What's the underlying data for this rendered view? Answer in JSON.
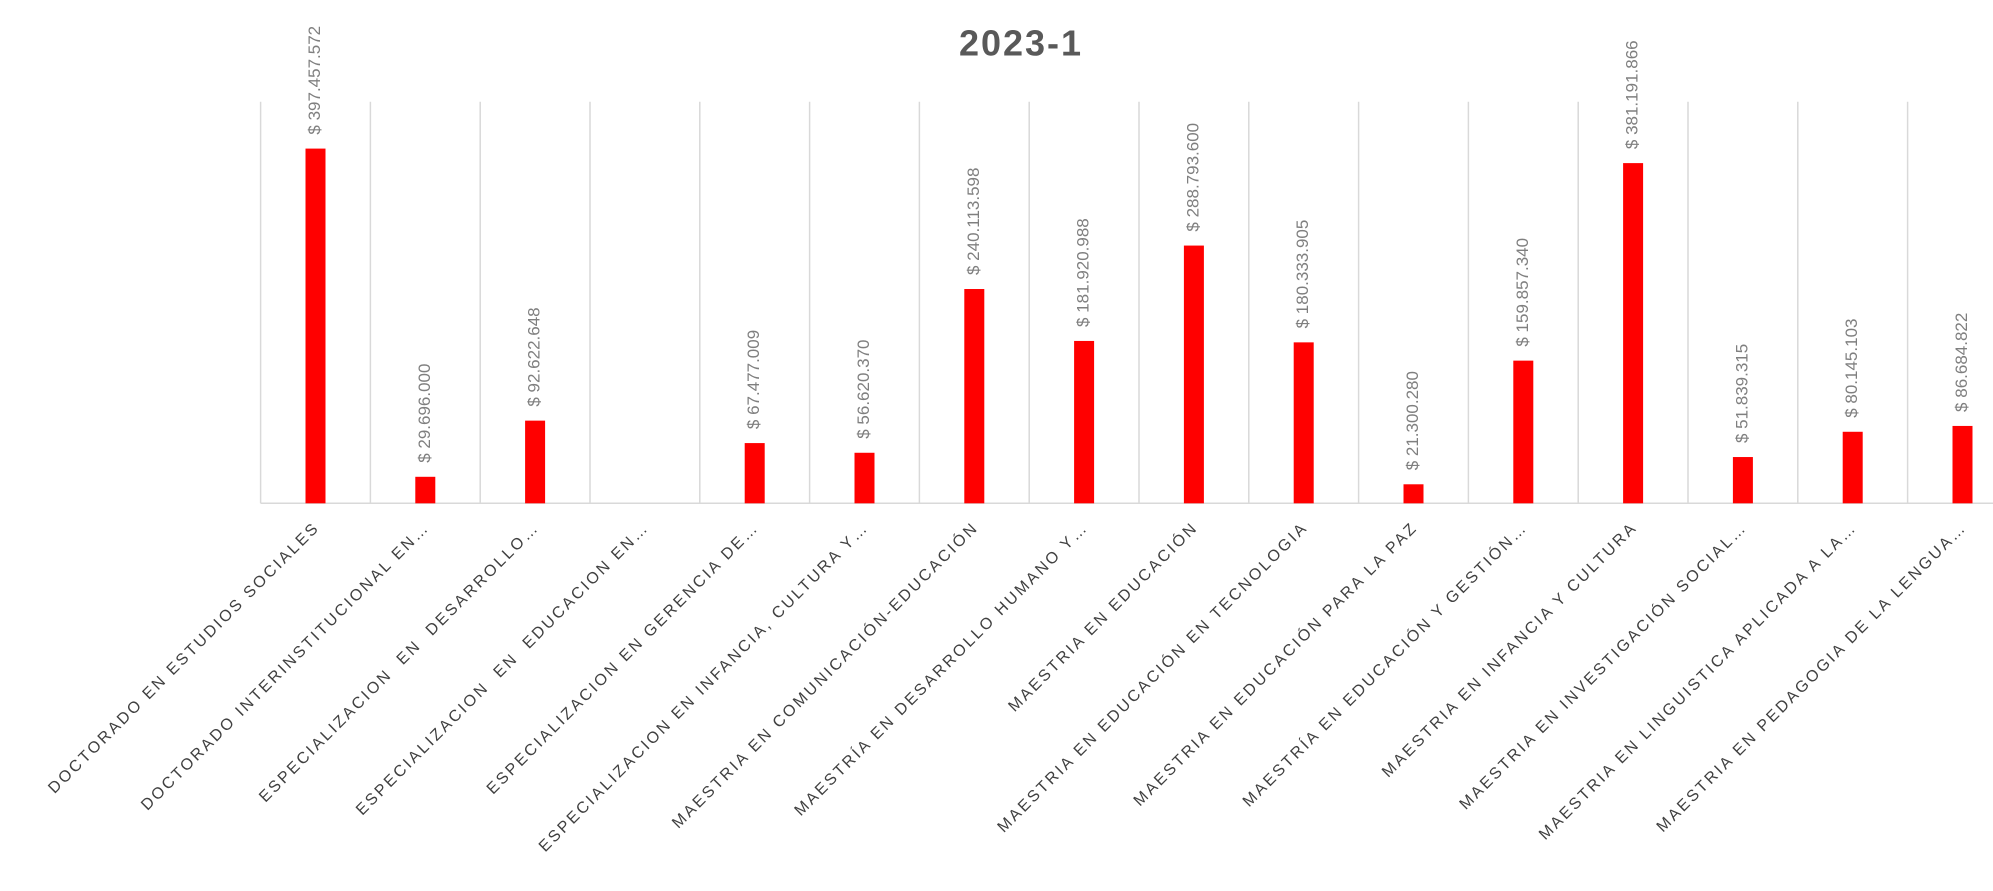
{
  "chart_data": {
    "type": "bar",
    "title": "2023-1",
    "categories": [
      "DOCTORADO EN ESTUDIOS SOCIALES",
      "DOCTORADO INTERINSTITUCIONAL EN…",
      "ESPECIALIZACION  EN  DESARROLLO…",
      "ESPECIALIZACION  EN  EDUCACION EN…",
      "ESPECIALIZACION EN GERENCIA DE…",
      "ESPECIALIZACION EN INFANCIA, CULTURA Y…",
      "MAESTRIA EN COMUNICACIÓN-EDUCACIÓN",
      "MAESTRÍA EN DESARROLLO HUMANO Y…",
      "MAESTRIA EN EDUCACIÓN",
      "MAESTRIA EN EDUCACIÓN EN TECNOLOGIA",
      "MAESTRIA EN EDUCACIÓN PARA LA PAZ",
      "MAESTRÍA EN EDUCACIÓN Y GESTIÓN…",
      "MAESTRIA EN INFANCIA Y CULTURA",
      "MAESTRIA EN INVESTIGACIÓN SOCIAL…",
      "MAESTRIA EN LINGUISTICA APLICADA A LA…",
      "MAESTRIA EN PEDAGOGIA DE LA LENGUA…"
    ],
    "values": [
      397457572,
      29696000,
      92622648,
      null,
      67477009,
      56620370,
      240113598,
      181920988,
      288793600,
      180333905,
      21300280,
      159857340,
      381191866,
      51839315,
      80145103,
      86684822
    ],
    "value_labels": [
      "$ 397.457.572",
      "$ 29.696.000",
      "$ 92.622.648",
      null,
      "$ 67.477.009",
      "$ 56.620.370",
      "$ 240.113.598",
      "$ 181.920.988",
      "$ 288.793.600",
      "$ 180.333.905",
      "$ 21.300.280",
      "$ 159.857.340",
      "$ 381.191.866",
      "$ 51.839.315",
      "$ 80.145.103",
      "$ 86.684.822"
    ],
    "color": "#ff0000",
    "ylim": [
      0,
      450000000
    ]
  }
}
